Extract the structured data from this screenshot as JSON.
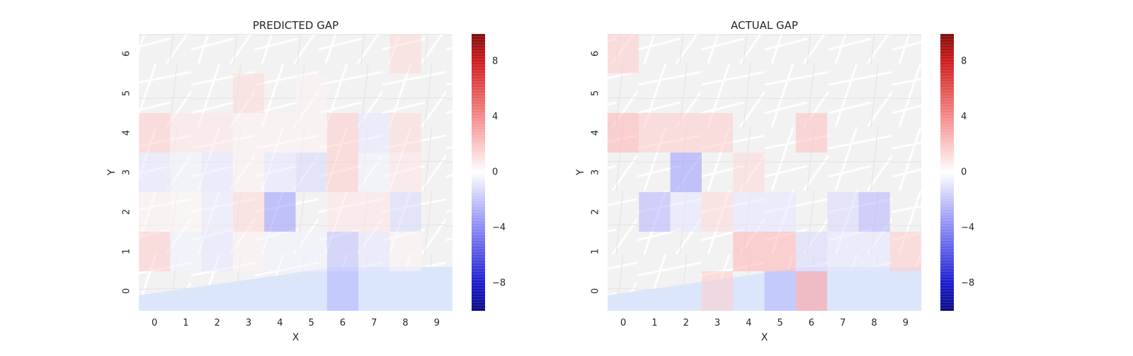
{
  "chart_data": [
    {
      "type": "heatmap",
      "title": "PREDICTED GAP",
      "xlabel": "X",
      "ylabel": "Y",
      "x": [
        0,
        1,
        2,
        3,
        4,
        5,
        6,
        7,
        8,
        9
      ],
      "y": [
        0,
        1,
        2,
        3,
        4,
        5,
        6
      ],
      "grid": [
        [
          0,
          0,
          0,
          0,
          0,
          0,
          -3,
          0,
          0,
          0
        ],
        [
          2,
          -0.5,
          -1,
          0.5,
          -0.5,
          -0.5,
          -2.5,
          -1,
          0.5,
          0
        ],
        [
          0.5,
          0.3,
          -0.8,
          1.5,
          -4,
          0,
          1,
          1,
          -1.5,
          0
        ],
        [
          -1,
          -0.5,
          -1,
          0.5,
          -1,
          -1.5,
          2,
          -0.5,
          1,
          0
        ],
        [
          2,
          1,
          1,
          0.5,
          0.5,
          0.5,
          2,
          -1,
          1.5,
          0
        ],
        [
          0,
          0,
          0,
          1.5,
          0,
          0.5,
          0,
          0,
          0,
          0
        ],
        [
          0,
          0,
          0,
          0,
          0,
          0,
          0,
          0,
          1.5,
          0
        ]
      ],
      "colorbar": {
        "min": -10,
        "max": 10,
        "ticks": [
          -8,
          -4,
          0,
          4,
          8
        ]
      },
      "colormap": {
        "negative": "#0000ff",
        "zero": "#ffffff",
        "positive": "#ff0000"
      }
    },
    {
      "type": "heatmap",
      "title": "ACTUAL GAP",
      "xlabel": "X",
      "ylabel": "Y",
      "x": [
        0,
        1,
        2,
        3,
        4,
        5,
        6,
        7,
        8,
        9
      ],
      "y": [
        0,
        1,
        2,
        3,
        4,
        5,
        6
      ],
      "grid": [
        [
          0,
          0,
          0,
          2,
          0,
          -3,
          4,
          0,
          0,
          0
        ],
        [
          0,
          0,
          0,
          0,
          3,
          3,
          -1.5,
          -1,
          -1,
          2
        ],
        [
          0,
          -3,
          -1,
          1.5,
          -1,
          -1,
          0,
          -1.5,
          -3,
          0
        ],
        [
          0,
          0,
          -4,
          0,
          1.5,
          0,
          0,
          0,
          0,
          0
        ],
        [
          3,
          2,
          2,
          2,
          0,
          0,
          2.5,
          0,
          0,
          0
        ],
        [
          0,
          0,
          0,
          0,
          0,
          0,
          0,
          0,
          0,
          0
        ],
        [
          2,
          0,
          0,
          0,
          0,
          0,
          0,
          0,
          0,
          0
        ]
      ],
      "colorbar": {
        "min": -10,
        "max": 10,
        "ticks": [
          -8,
          -4,
          0,
          4,
          8
        ]
      },
      "colormap": {
        "negative": "#0000ff",
        "zero": "#ffffff",
        "positive": "#ff0000"
      }
    }
  ]
}
